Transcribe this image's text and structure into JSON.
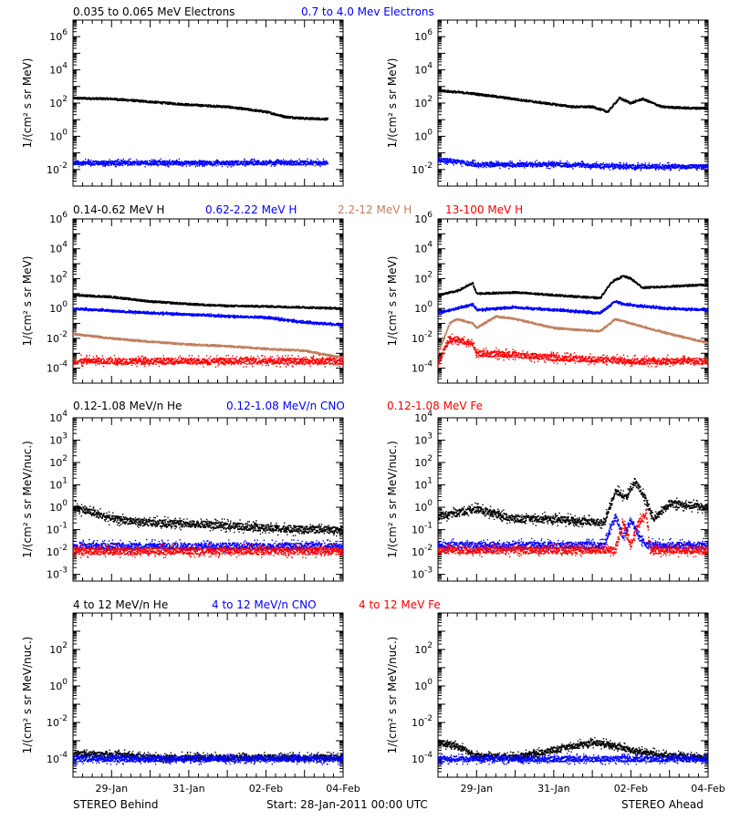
{
  "colors": {
    "black": "#000000",
    "blue": "#0000ff",
    "tan": "#c08060",
    "red": "#ff0000"
  },
  "rows": [
    {
      "legend": [
        {
          "text": "0.035 to 0.065 MeV Electrons",
          "color": "black"
        },
        {
          "text": "0.7 to 4.0 Mev Electrons",
          "color": "blue"
        }
      ],
      "ylabel": "1/(cm² s sr MeV)"
    },
    {
      "legend": [
        {
          "text": "0.14-0.62 MeV H",
          "color": "black"
        },
        {
          "text": "0.62-2.22 MeV H",
          "color": "blue"
        },
        {
          "text": "2.2-12 MeV H",
          "color": "tan"
        },
        {
          "text": "13-100 MeV H",
          "color": "red"
        }
      ],
      "ylabel": "1/(cm² s sr MeV)"
    },
    {
      "legend": [
        {
          "text": "0.12-1.08 MeV/n He",
          "color": "black"
        },
        {
          "text": "0.12-1.08 MeV/n CNO",
          "color": "blue"
        },
        {
          "text": "0.12-1.08 MeV Fe",
          "color": "red"
        }
      ],
      "ylabel": "1/(cm² s sr MeV/nuc.)"
    },
    {
      "legend": [
        {
          "text": "4 to 12 MeV/n He",
          "color": "black"
        },
        {
          "text": "4 to 12 MeV/n CNO",
          "color": "blue"
        },
        {
          "text": "4 to 12 MeV Fe",
          "color": "red"
        }
      ],
      "ylabel": "1/(cm² s sr MeV/nuc.)"
    }
  ],
  "footer": {
    "left": "STEREO Behind",
    "center": "Start: 28-Jan-2011 00:00 UTC",
    "right": "STEREO Ahead"
  },
  "chart_data": [
    {
      "type": "scatter",
      "spacecraft": "STEREO Behind",
      "row": 0,
      "scale": "log",
      "ylim": [
        0.001,
        10000000
      ],
      "yticks": [
        "10^-2",
        "10^0",
        "10^2",
        "10^4",
        "10^6"
      ],
      "xlim": [
        "2011-01-28T00:00",
        "2011-02-04T00:00"
      ],
      "xticks": [
        "29-Jan",
        "31-Jan",
        "02-Feb",
        "04-Feb"
      ],
      "series": [
        {
          "name": "0.035 to 0.065 MeV Electrons",
          "color": "black",
          "x_days": [
            0,
            1,
            2,
            3,
            4,
            5,
            5.5,
            6,
            6.6
          ],
          "values": [
            200,
            180,
            120,
            80,
            60,
            30,
            15,
            12,
            11
          ]
        },
        {
          "name": "0.7 to 4.0 Mev Electrons",
          "color": "blue",
          "x_days": [
            0,
            2,
            4,
            6,
            6.6
          ],
          "values": [
            0.025,
            0.025,
            0.025,
            0.025,
            0.025
          ]
        }
      ]
    },
    {
      "type": "scatter",
      "spacecraft": "STEREO Ahead",
      "row": 0,
      "scale": "log",
      "ylim": [
        0.001,
        10000000
      ],
      "yticks": [
        "10^-2",
        "10^0",
        "10^2",
        "10^4",
        "10^6"
      ],
      "xlim": [
        "2011-01-28T00:00",
        "2011-02-04T00:00"
      ],
      "xticks": [
        "29-Jan",
        "31-Jan",
        "02-Feb",
        "04-Feb"
      ],
      "series": [
        {
          "name": "0.035 to 0.065 MeV Electrons",
          "color": "black",
          "x_days": [
            0,
            0.3,
            0.8,
            1.5,
            2.5,
            3.5,
            4.0,
            4.4,
            4.7,
            5.0,
            5.3,
            5.8,
            6.5,
            7.0
          ],
          "values": [
            600,
            500,
            400,
            250,
            120,
            60,
            60,
            30,
            200,
            100,
            180,
            60,
            50,
            50
          ]
        },
        {
          "name": "0.7 to 4.0 Mev Electrons",
          "color": "blue",
          "x_days": [
            0,
            0.5,
            1,
            2,
            3,
            5,
            7
          ],
          "values": [
            0.04,
            0.03,
            0.02,
            0.02,
            0.02,
            0.015,
            0.015
          ]
        }
      ]
    },
    {
      "type": "scatter",
      "spacecraft": "STEREO Behind",
      "row": 1,
      "scale": "log",
      "ylim": [
        1e-05,
        1000000
      ],
      "yticks": [
        "10^-4",
        "10^-2",
        "10^0",
        "10^2",
        "10^4",
        "10^6"
      ],
      "xlim": [
        "2011-01-28T00:00",
        "2011-02-04T00:00"
      ],
      "xticks": [
        "29-Jan",
        "31-Jan",
        "02-Feb",
        "04-Feb"
      ],
      "series": [
        {
          "name": "0.14-0.62 MeV H",
          "color": "black",
          "x_days": [
            0,
            1,
            2,
            3,
            4,
            5,
            6,
            7
          ],
          "values": [
            8,
            6,
            3,
            2,
            1.5,
            1.4,
            1.2,
            1
          ]
        },
        {
          "name": "0.62-2.22 MeV H",
          "color": "blue",
          "x_days": [
            0,
            1,
            2,
            3,
            4,
            5,
            6,
            7
          ],
          "values": [
            1,
            0.7,
            0.5,
            0.4,
            0.3,
            0.25,
            0.12,
            0.08
          ]
        },
        {
          "name": "2.2-12 MeV H",
          "color": "tan",
          "x_days": [
            0,
            1,
            2,
            3,
            4,
            5,
            6,
            7
          ],
          "values": [
            0.02,
            0.01,
            0.006,
            0.004,
            0.003,
            0.002,
            0.0015,
            0.0005
          ]
        },
        {
          "name": "13-100 MeV H",
          "color": "red",
          "x_days": [
            0,
            2,
            4,
            6,
            7
          ],
          "values": [
            0.0003,
            0.0003,
            0.0003,
            0.0003,
            0.0003
          ]
        }
      ]
    },
    {
      "type": "scatter",
      "spacecraft": "STEREO Ahead",
      "row": 1,
      "scale": "log",
      "ylim": [
        1e-05,
        1000000
      ],
      "yticks": [
        "10^-4",
        "10^-2",
        "10^0",
        "10^2",
        "10^4",
        "10^6"
      ],
      "xlim": [
        "2011-01-28T00:00",
        "2011-02-04T00:00"
      ],
      "xticks": [
        "29-Jan",
        "31-Jan",
        "02-Feb",
        "04-Feb"
      ],
      "series": [
        {
          "name": "0.14-0.62 MeV H",
          "color": "black",
          "x_days": [
            0,
            0.5,
            0.9,
            1.0,
            2,
            3,
            4.2,
            4.5,
            4.8,
            5.0,
            5.3,
            6,
            7
          ],
          "values": [
            8,
            15,
            50,
            10,
            12,
            8,
            5,
            60,
            150,
            100,
            25,
            30,
            40
          ]
        },
        {
          "name": "0.62-2.22 MeV H",
          "color": "blue",
          "x_days": [
            0,
            0.5,
            0.9,
            1.0,
            2,
            3,
            4.2,
            4.6,
            4.8,
            5.2,
            6,
            7
          ],
          "values": [
            0.5,
            1,
            2,
            0.8,
            1.2,
            0.8,
            0.5,
            3,
            2,
            1.5,
            1,
            0.8
          ]
        },
        {
          "name": "2.2-12 MeV H",
          "color": "tan",
          "x_days": [
            0,
            0.3,
            0.5,
            0.9,
            1.0,
            1.5,
            2,
            3,
            4.2,
            4.6,
            5,
            6,
            7
          ],
          "values": [
            0.001,
            0.1,
            0.2,
            0.1,
            0.05,
            0.3,
            0.2,
            0.05,
            0.03,
            0.2,
            0.1,
            0.02,
            0.005
          ]
        },
        {
          "name": "13-100 MeV H",
          "color": "red",
          "x_days": [
            0,
            0.3,
            0.9,
            1.0,
            2,
            3,
            4,
            5,
            7
          ],
          "values": [
            0.0002,
            0.01,
            0.005,
            0.001,
            0.0008,
            0.0005,
            0.0004,
            0.0003,
            0.0003
          ]
        }
      ]
    },
    {
      "type": "scatter",
      "spacecraft": "STEREO Behind",
      "row": 2,
      "scale": "log",
      "ylim": [
        0.0005,
        10000
      ],
      "yticks": [
        "10^-3",
        "10^-2",
        "10^-1",
        "10^0",
        "10^1",
        "10^2",
        "10^3",
        "10^4"
      ],
      "xlim": [
        "2011-01-28T00:00",
        "2011-02-04T00:00"
      ],
      "xticks": [
        "29-Jan",
        "31-Jan",
        "02-Feb",
        "04-Feb"
      ],
      "series": [
        {
          "name": "0.12-1.08 MeV/n He",
          "color": "black",
          "x_days": [
            0,
            0.5,
            1,
            2,
            3,
            4,
            5,
            6,
            7
          ],
          "values": [
            1.0,
            0.6,
            0.3,
            0.2,
            0.18,
            0.15,
            0.12,
            0.1,
            0.1
          ]
        },
        {
          "name": "0.12-1.08 MeV/n CNO",
          "color": "blue",
          "x_days": [
            0,
            7
          ],
          "values": [
            0.018,
            0.018
          ]
        },
        {
          "name": "0.12-1.08 MeV Fe",
          "color": "red",
          "x_days": [
            0,
            7
          ],
          "values": [
            0.011,
            0.011
          ]
        }
      ]
    },
    {
      "type": "scatter",
      "spacecraft": "STEREO Ahead",
      "row": 2,
      "scale": "log",
      "ylim": [
        0.0005,
        10000
      ],
      "yticks": [
        "10^-3",
        "10^-2",
        "10^-1",
        "10^0",
        "10^1",
        "10^2",
        "10^3",
        "10^4"
      ],
      "xlim": [
        "2011-01-28T00:00",
        "2011-02-04T00:00"
      ],
      "xticks": [
        "29-Jan",
        "31-Jan",
        "02-Feb",
        "04-Feb"
      ],
      "series": [
        {
          "name": "0.12-1.08 MeV/n He",
          "color": "black",
          "x_days": [
            0,
            1,
            2,
            3,
            4.3,
            4.6,
            4.9,
            5.1,
            5.3,
            5.6,
            6,
            7
          ],
          "values": [
            0.4,
            0.8,
            0.3,
            0.3,
            0.2,
            5,
            3,
            15,
            4,
            0.3,
            1.5,
            1
          ]
        },
        {
          "name": "0.12-1.08 MeV/n CNO",
          "color": "blue",
          "x_days": [
            0,
            4.3,
            4.6,
            4.8,
            5.0,
            5.2,
            5.4,
            7
          ],
          "values": [
            0.02,
            0.02,
            0.4,
            0.05,
            0.3,
            0.05,
            0.02,
            0.02
          ]
        },
        {
          "name": "0.12-1.08 MeV Fe",
          "color": "red",
          "x_days": [
            0,
            4.6,
            4.8,
            5.0,
            5.2,
            5.4,
            5.5,
            7
          ],
          "values": [
            0.012,
            0.012,
            0.2,
            0.02,
            0.2,
            0.6,
            0.012,
            0.012
          ]
        }
      ]
    },
    {
      "type": "scatter",
      "spacecraft": "STEREO Behind",
      "row": 3,
      "scale": "log",
      "ylim": [
        1e-05,
        10000
      ],
      "yticks": [
        "10^-4",
        "10^-2",
        "10^0",
        "10^2"
      ],
      "xlim": [
        "2011-01-28T00:00",
        "2011-02-04T00:00"
      ],
      "xticks": [
        "29-Jan",
        "31-Jan",
        "02-Feb",
        "04-Feb"
      ],
      "series": [
        {
          "name": "4 to 12 MeV/n He",
          "color": "black",
          "x_days": [
            0,
            1,
            2,
            3,
            4,
            5,
            6,
            7
          ],
          "values": [
            0.00018,
            0.00018,
            0.00012,
            0.00012,
            0.00012,
            0.00012,
            0.00012,
            0.00012
          ]
        },
        {
          "name": "4 to 12 MeV/n CNO",
          "color": "blue",
          "x_days": [
            0,
            7
          ],
          "values": [
            0.0001,
            0.0001
          ]
        }
      ]
    },
    {
      "type": "scatter",
      "spacecraft": "STEREO Ahead",
      "row": 3,
      "scale": "log",
      "ylim": [
        1e-05,
        10000
      ],
      "yticks": [
        "10^-4",
        "10^-2",
        "10^0",
        "10^2"
      ],
      "xlim": [
        "2011-01-28T00:00",
        "2011-02-04T00:00"
      ],
      "xticks": [
        "29-Jan",
        "31-Jan",
        "02-Feb",
        "04-Feb"
      ],
      "series": [
        {
          "name": "4 to 12 MeV/n He",
          "color": "black",
          "x_days": [
            0,
            0.5,
            1,
            2,
            4,
            4.5,
            5,
            6,
            7
          ],
          "values": [
            0.0008,
            0.0005,
            0.00015,
            0.00012,
            0.0008,
            0.0006,
            0.0003,
            0.00015,
            0.00012
          ]
        },
        {
          "name": "4 to 12 MeV/n CNO",
          "color": "blue",
          "x_days": [
            0,
            7
          ],
          "values": [
            0.0001,
            0.0001
          ]
        }
      ]
    }
  ]
}
